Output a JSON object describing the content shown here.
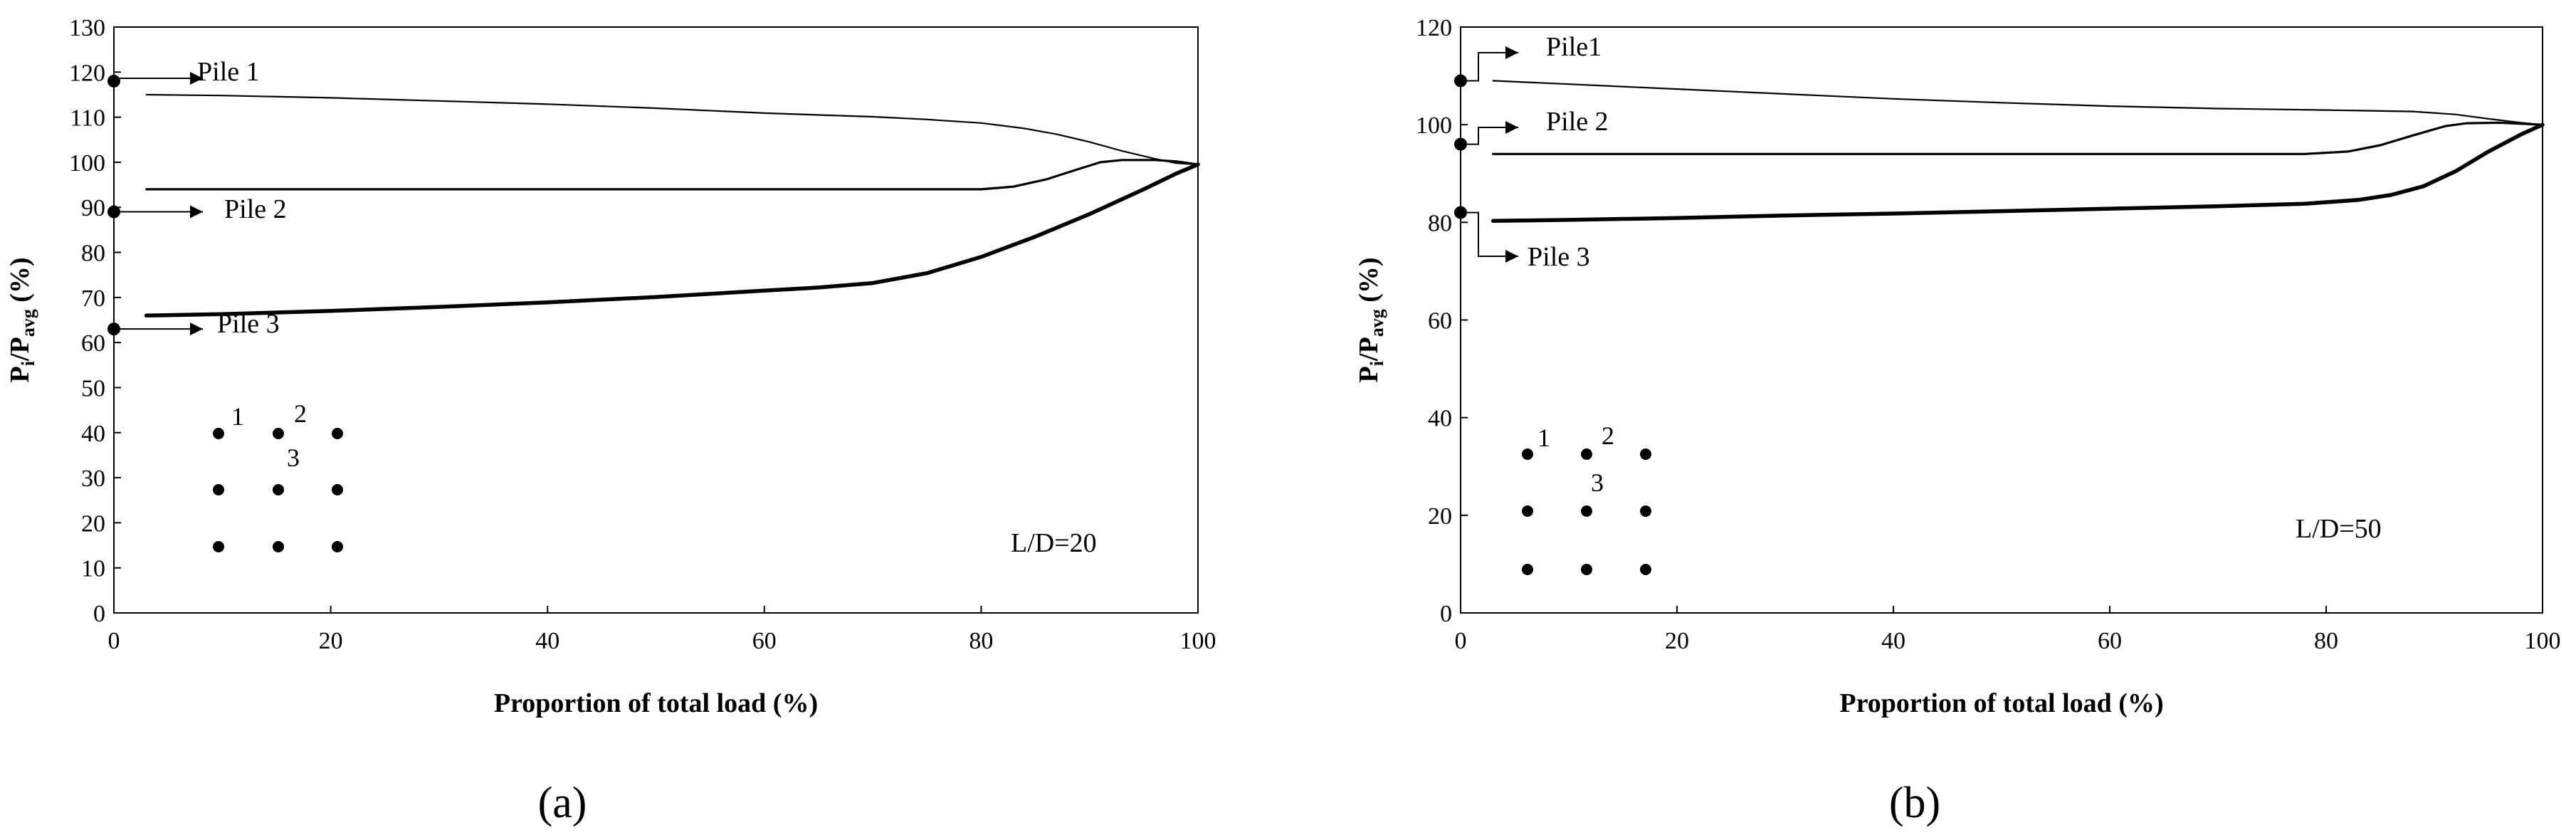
{
  "chart_data": [
    {
      "type": "line",
      "panel_label": "(a)",
      "annotation": "L/D=20",
      "xlabel": "Proportion of total load (%)",
      "ylabel_main": "P",
      "ylabel_sub1": "i",
      "ylabel_mid": "/P",
      "ylabel_sub2": "avg",
      "ylabel_unit": " (%)",
      "xlim": [
        0,
        100
      ],
      "ylim": [
        0,
        130
      ],
      "x_ticks": [
        0,
        20,
        40,
        60,
        80,
        100
      ],
      "y_ticks": [
        0,
        10,
        20,
        30,
        40,
        50,
        60,
        70,
        80,
        90,
        100,
        110,
        120,
        130
      ],
      "grid": false,
      "series": [
        {
          "name": "Pile 1",
          "initial_marker": 118,
          "x": [
            3,
            10,
            20,
            30,
            40,
            50,
            60,
            70,
            75,
            80,
            84,
            87,
            90,
            93,
            96,
            98,
            100
          ],
          "y": [
            115,
            114.8,
            114.3,
            113.6,
            112.9,
            112.0,
            110.9,
            110.1,
            109.5,
            108.7,
            107.5,
            106.2,
            104.5,
            102.5,
            100.8,
            99.8,
            99.5
          ]
        },
        {
          "name": "Pile 2",
          "initial_marker": 89,
          "x": [
            3,
            20,
            40,
            60,
            75,
            80,
            83,
            86,
            89,
            91,
            93,
            96,
            98,
            100
          ],
          "y": [
            94,
            94,
            94,
            94,
            94,
            94,
            94.6,
            96.2,
            98.5,
            100,
            100.5,
            100.5,
            100.2,
            99.5
          ]
        },
        {
          "name": "Pile 3",
          "initial_marker": 63,
          "x": [
            3,
            10,
            20,
            30,
            40,
            50,
            60,
            65,
            70,
            75,
            80,
            85,
            90,
            95,
            98,
            100
          ],
          "y": [
            66,
            66.3,
            67.0,
            67.9,
            68.9,
            70.1,
            71.5,
            72.2,
            73.2,
            75.4,
            79.0,
            83.5,
            88.5,
            94.0,
            97.5,
            99.5
          ]
        }
      ],
      "pile_layout": {
        "labels": [
          "1",
          "2",
          "3"
        ]
      }
    },
    {
      "type": "line",
      "panel_label": "(b)",
      "annotation": "L/D=50",
      "xlabel": "Proportion of total load (%)",
      "ylabel_main": "P",
      "ylabel_sub1": "i",
      "ylabel_mid": "/P",
      "ylabel_sub2": "avg",
      "ylabel_unit": " (%)",
      "xlim": [
        0,
        100
      ],
      "ylim": [
        0,
        120
      ],
      "x_ticks": [
        0,
        20,
        40,
        60,
        80,
        100
      ],
      "y_ticks": [
        0,
        20,
        40,
        60,
        80,
        100,
        120
      ],
      "grid": false,
      "series": [
        {
          "name": "Pile1",
          "initial_marker": 109,
          "x": [
            3,
            10,
            20,
            30,
            40,
            50,
            60,
            70,
            80,
            88,
            92,
            95,
            98,
            100
          ],
          "y": [
            109,
            108.3,
            107.3,
            106.3,
            105.3,
            104.5,
            103.8,
            103.3,
            103.0,
            102.7,
            102.1,
            101.2,
            100.4,
            100
          ]
        },
        {
          "name": "Pile 2",
          "initial_marker": 96,
          "x": [
            3,
            20,
            40,
            60,
            78,
            82,
            85,
            88,
            91,
            93,
            96,
            98,
            100
          ],
          "y": [
            94,
            94,
            94,
            94,
            94,
            94.5,
            95.8,
            97.8,
            99.7,
            100.3,
            100.4,
            100.2,
            100
          ]
        },
        {
          "name": "Pile 3",
          "initial_marker": 82,
          "x": [
            3,
            10,
            20,
            30,
            40,
            50,
            60,
            70,
            78,
            83,
            86,
            89,
            92,
            95,
            98,
            100
          ],
          "y": [
            80.3,
            80.5,
            80.9,
            81.4,
            81.8,
            82.3,
            82.8,
            83.3,
            83.8,
            84.6,
            85.6,
            87.4,
            90.5,
            94.5,
            98,
            100
          ]
        }
      ],
      "pile_layout": {
        "labels": [
          "1",
          "2",
          "3"
        ]
      }
    }
  ]
}
